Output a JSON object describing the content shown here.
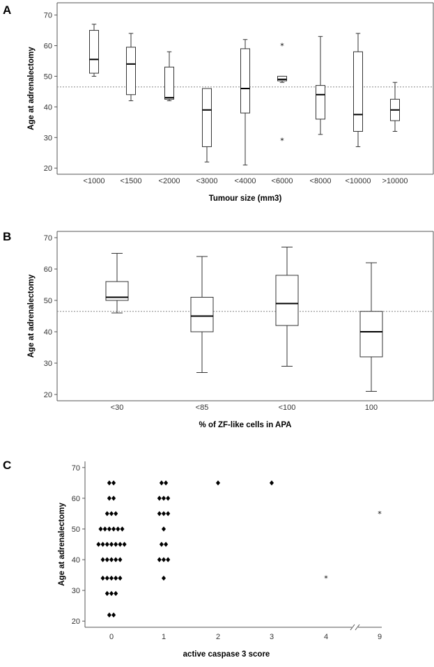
{
  "chart_data": [
    {
      "panel": "A",
      "type": "box",
      "xlabel": "Tumour size (mm3)",
      "ylabel": "Age at adrenalectomy",
      "ylim": [
        18,
        74
      ],
      "yticks": [
        20,
        30,
        40,
        50,
        60,
        70
      ],
      "reference_line": 46.5,
      "categories": [
        "<1000",
        "<1500",
        "<2000",
        "<3000",
        "<4000",
        "<6000",
        "<8000",
        "<10000",
        ">10000"
      ],
      "boxes": [
        {
          "min": 50,
          "q1": 51,
          "median": 55.5,
          "q3": 65,
          "max": 67,
          "outliers": []
        },
        {
          "min": 42,
          "q1": 44,
          "median": 54,
          "q3": 59.5,
          "max": 64,
          "outliers": []
        },
        {
          "min": 42,
          "q1": 42.5,
          "median": 43,
          "q3": 53,
          "max": 58,
          "outliers": []
        },
        {
          "min": 22,
          "q1": 27,
          "median": 39,
          "q3": 46,
          "max": 46,
          "outliers": []
        },
        {
          "min": 21,
          "q1": 38,
          "median": 46,
          "q3": 59,
          "max": 62,
          "outliers": []
        },
        {
          "min": 48,
          "q1": 48.5,
          "median": 49,
          "q3": 50,
          "max": 50,
          "outliers": [
            60,
            29
          ]
        },
        {
          "min": 31,
          "q1": 36,
          "median": 44,
          "q3": 47,
          "max": 63,
          "outliers": []
        },
        {
          "min": 27,
          "q1": 32,
          "median": 37.5,
          "q3": 58,
          "max": 64,
          "outliers": []
        },
        {
          "min": 32,
          "q1": 35.5,
          "median": 39,
          "q3": 42.5,
          "max": 48,
          "outliers": []
        }
      ]
    },
    {
      "panel": "B",
      "type": "box",
      "xlabel": "% of ZF-like cells in APA",
      "ylabel": "Age at adrenalectomy",
      "ylim": [
        18,
        72
      ],
      "yticks": [
        20,
        30,
        40,
        50,
        60,
        70
      ],
      "reference_line": 46.5,
      "categories": [
        "<30",
        "<85",
        "<100",
        "100"
      ],
      "boxes": [
        {
          "min": 46,
          "q1": 50,
          "median": 51,
          "q3": 56,
          "max": 65,
          "outliers": []
        },
        {
          "min": 27,
          "q1": 40,
          "median": 45,
          "q3": 51,
          "max": 64,
          "outliers": []
        },
        {
          "min": 29,
          "q1": 42,
          "median": 49,
          "q3": 58,
          "max": 67,
          "outliers": []
        },
        {
          "min": 21,
          "q1": 32,
          "median": 40,
          "q3": 46.5,
          "max": 62,
          "outliers": []
        }
      ]
    },
    {
      "panel": "C",
      "type": "scatter",
      "xlabel": "active caspase 3 score",
      "ylabel": "Age at adrenalectomy",
      "ylim": [
        18,
        72
      ],
      "yticks": [
        20,
        30,
        40,
        50,
        60,
        70
      ],
      "categories": [
        "0",
        "1",
        "2",
        "3",
        "4",
        "9"
      ],
      "axis_break_between": [
        "4",
        "9"
      ],
      "groups": [
        {
          "category": "0",
          "rows": [
            {
              "y": 65,
              "count": 2
            },
            {
              "y": 60,
              "count": 2
            },
            {
              "y": 55,
              "count": 3
            },
            {
              "y": 50,
              "count": 6
            },
            {
              "y": 45,
              "count": 7
            },
            {
              "y": 40,
              "count": 5
            },
            {
              "y": 34,
              "count": 5
            },
            {
              "y": 29,
              "count": 3
            },
            {
              "y": 22,
              "count": 2
            }
          ]
        },
        {
          "category": "1",
          "rows": [
            {
              "y": 65,
              "count": 2
            },
            {
              "y": 60,
              "count": 3
            },
            {
              "y": 55,
              "count": 3
            },
            {
              "y": 50,
              "count": 1
            },
            {
              "y": 45,
              "count": 2
            },
            {
              "y": 40,
              "count": 3
            },
            {
              "y": 34,
              "count": 1
            }
          ]
        },
        {
          "category": "2",
          "rows": [
            {
              "y": 65,
              "count": 1
            }
          ]
        },
        {
          "category": "3",
          "rows": [
            {
              "y": 65,
              "count": 1
            }
          ]
        }
      ],
      "outliers": [
        {
          "category": "4",
          "y": 34
        },
        {
          "category": "9",
          "y": 55
        }
      ]
    }
  ]
}
